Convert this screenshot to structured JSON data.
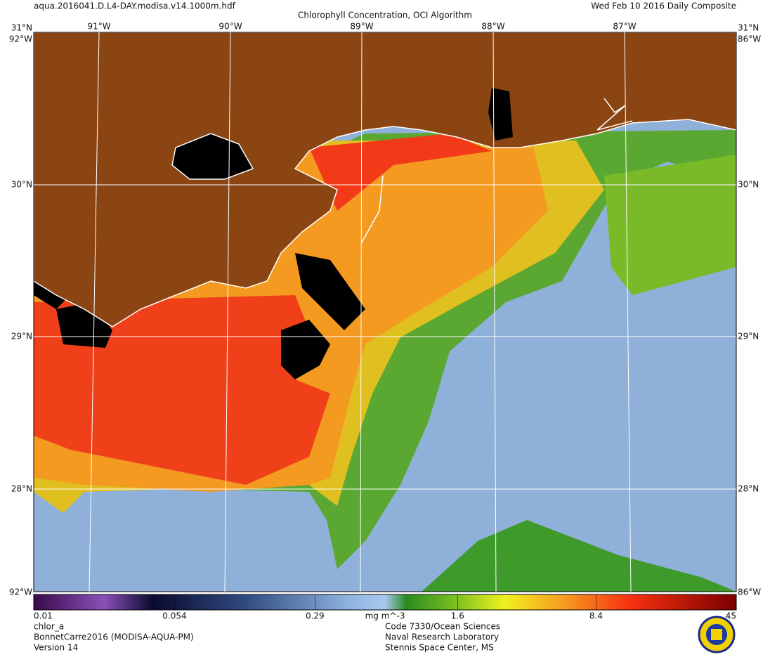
{
  "header": {
    "file": "aqua.2016041.D.L4-DAY.modisa.v14.1000m.hdf",
    "title": "Chlorophyll Concentration, OCI Algorithm",
    "date": "Wed Feb 10 2016 Daily Composite"
  },
  "map": {
    "lat_labels": [
      "31°N",
      "30°N",
      "29°N",
      "28°N"
    ],
    "lon_labels": [
      "91°W",
      "90°W",
      "89°W",
      "88°W",
      "87°W"
    ],
    "corner_labels": [
      "92°W",
      "86°W"
    ]
  },
  "colorbar": {
    "range": [
      0.01,
      45
    ],
    "log": true,
    "ticks": [
      0.01,
      0.054,
      0.29,
      1.6,
      8.4,
      45
    ],
    "unit": "mg m^-3"
  },
  "footer": {
    "left": [
      "chlor_a",
      "BonnetCarre2016 (MODISA-AQUA-PM)",
      "Version 14"
    ],
    "center": [
      "Code 7330/Ocean Sciences",
      "Naval Research Laboratory",
      "Stennis Space Center, MS"
    ]
  }
}
